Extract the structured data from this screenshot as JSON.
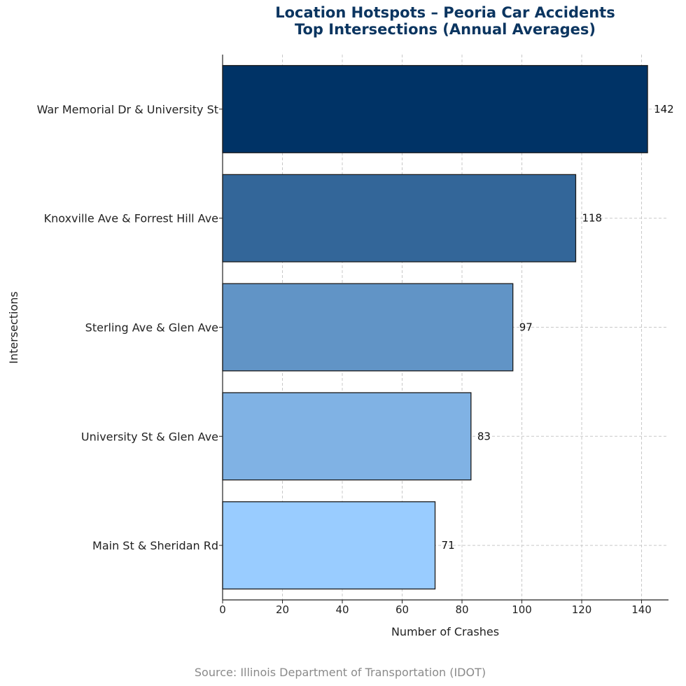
{
  "chart_data": {
    "type": "bar",
    "orientation": "horizontal",
    "title": "Location Hotspots – Peoria Car Accidents",
    "subtitle": "Top Intersections (Annual Averages)",
    "xlabel": "Number of Crashes",
    "ylabel": "Intersections",
    "categories": [
      "War Memorial Dr & University St",
      "Knoxville Ave & Forrest Hill Ave",
      "Sterling Ave & Glen Ave",
      "University St & Glen Ave",
      "Main St & Sheridan Rd"
    ],
    "values": [
      142,
      118,
      97,
      83,
      71
    ],
    "colors": [
      "#003366",
      "#336699",
      "#6194c6",
      "#80b2e4",
      "#99ccff"
    ],
    "xlim": [
      0,
      149
    ],
    "xticks": [
      0,
      20,
      40,
      60,
      80,
      100,
      120,
      140
    ],
    "grid": true,
    "legend": "none"
  },
  "source": "Source: Illinois Department of Transportation (IDOT)"
}
